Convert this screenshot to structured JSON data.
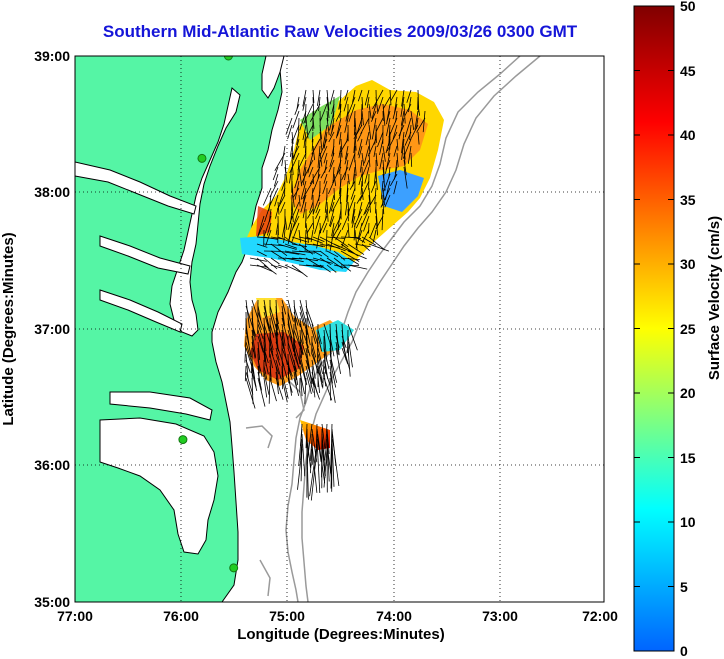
{
  "title": "Southern Mid-Atlantic Raw Velocities 2009/03/26 0300 GMT",
  "map": {
    "xlabel": "Longitude (Degrees:Minutes)",
    "ylabel": "Latitude (Degrees:Minutes)",
    "x_ticks": [
      "77:00",
      "76:00",
      "75:00",
      "74:00",
      "73:00",
      "72:00"
    ],
    "y_ticks": [
      "39:00",
      "38:00",
      "37:00",
      "36:00",
      "35:00"
    ],
    "lon_range": [
      -77,
      -72
    ],
    "lat_range": [
      35,
      39
    ],
    "grid": "dotted",
    "colors": {
      "land": "#55f5a5",
      "ocean": "#ffffff",
      "bathymetry": "#9a9a9a",
      "coastline": "#000000",
      "station": "#22cc22",
      "vector": "#000000"
    },
    "stations": [
      {
        "lon": -75.55,
        "lat": 39.0
      },
      {
        "lon": -75.8,
        "lat": 38.25
      },
      {
        "lon": -75.98,
        "lat": 36.19
      },
      {
        "lon": -75.5,
        "lat": 35.25
      }
    ]
  },
  "colorbar": {
    "label": "Surface Velocity (cm/s)",
    "ticks": [
      "0",
      "5",
      "10",
      "15",
      "20",
      "25",
      "30",
      "35",
      "40",
      "45",
      "50"
    ],
    "min": 0,
    "max": 50,
    "colormap": "jet",
    "colors": [
      "#0064ff",
      "#00ffff",
      "#ffff00",
      "#ff0000",
      "#800000"
    ]
  }
}
